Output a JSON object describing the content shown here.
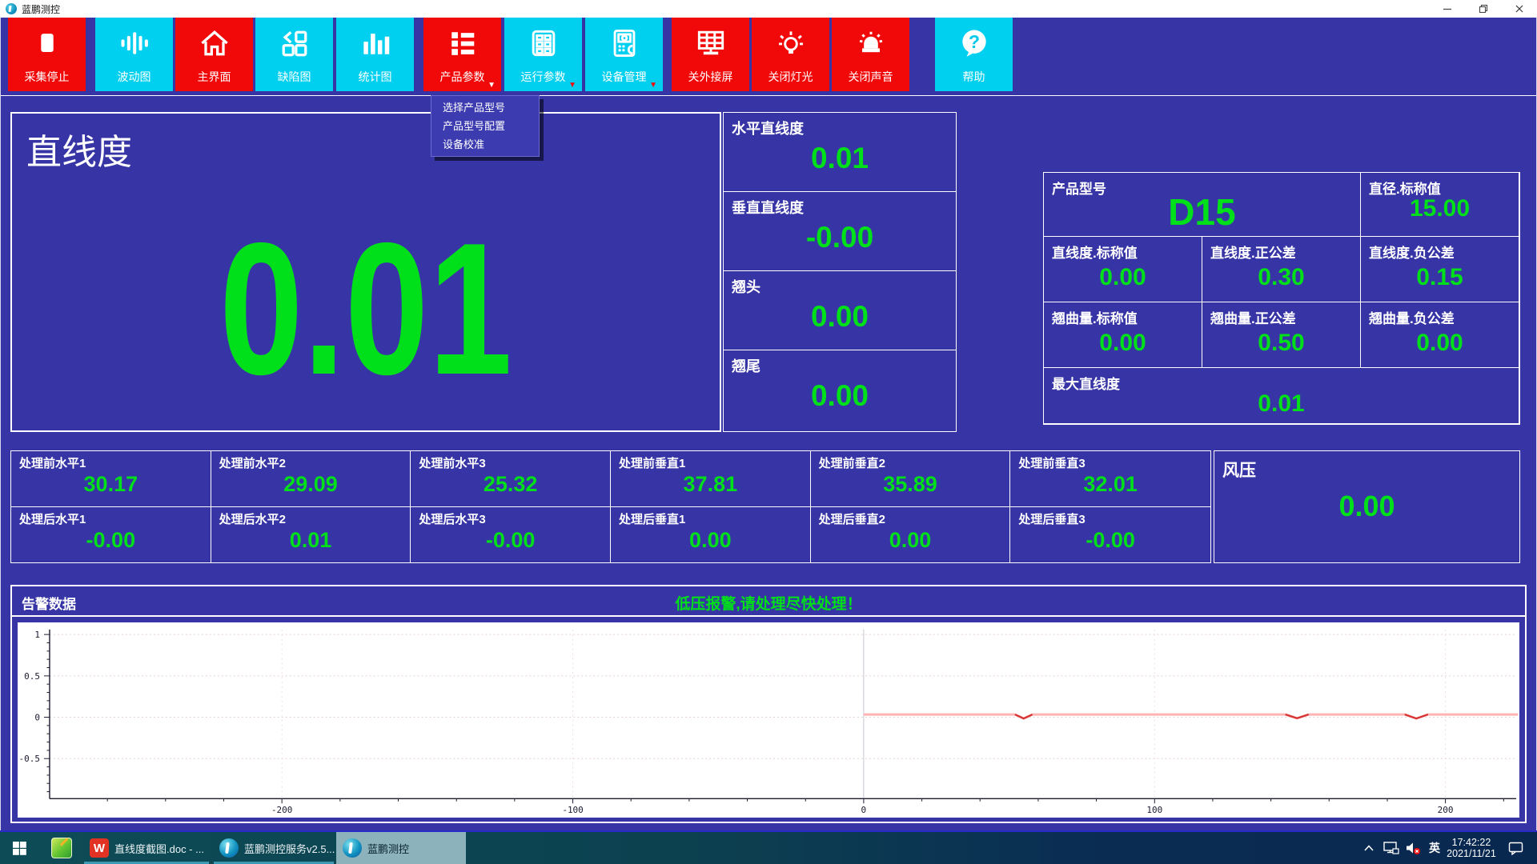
{
  "window": {
    "title": "蓝鹏测控",
    "controls": {
      "minimize": "minimize",
      "restore": "restore",
      "close": "close"
    }
  },
  "toolbar": {
    "buttons": [
      {
        "label": "采集停止",
        "color": "red",
        "icon": "stop-icon",
        "has_dropdown": false
      },
      {
        "label": "波动图",
        "color": "cyan",
        "icon": "waveform-icon",
        "has_dropdown": false
      },
      {
        "label": "主界面",
        "color": "red",
        "icon": "home-icon",
        "has_dropdown": false
      },
      {
        "label": "缺陷图",
        "color": "cyan",
        "icon": "defect-map-icon",
        "has_dropdown": false
      },
      {
        "label": "统计图",
        "color": "cyan",
        "icon": "bar-chart-icon",
        "has_dropdown": false
      },
      {
        "label": "产品参数",
        "color": "red",
        "icon": "product-list-icon",
        "has_dropdown": true
      },
      {
        "label": "运行参数",
        "color": "cyan",
        "icon": "run-params-icon",
        "has_dropdown": true
      },
      {
        "label": "设备管理",
        "color": "cyan",
        "icon": "device-icon",
        "has_dropdown": true
      },
      {
        "label": "关外接屏",
        "color": "red",
        "icon": "external-screen-icon",
        "has_dropdown": false
      },
      {
        "label": "关闭灯光",
        "color": "red",
        "icon": "light-bulb-icon",
        "has_dropdown": false
      },
      {
        "label": "关闭声音",
        "color": "red",
        "icon": "siren-icon",
        "has_dropdown": false
      },
      {
        "label": "帮助",
        "color": "cyan",
        "icon": "help-icon",
        "has_dropdown": false
      }
    ]
  },
  "dropdown_menu": {
    "items": [
      {
        "label": "选择产品型号"
      },
      {
        "label": "产品型号配置"
      },
      {
        "label": "设备校准"
      }
    ]
  },
  "main_panel": {
    "title": "直线度",
    "value": "0.01"
  },
  "side_panels": [
    {
      "label": "水平直线度",
      "value": "0.01"
    },
    {
      "label": "垂直直线度",
      "value": "-0.00"
    },
    {
      "label": "翘头",
      "value": "0.00"
    },
    {
      "label": "翘尾",
      "value": "0.00"
    }
  ],
  "product_table": {
    "model_label": "产品型号",
    "model_value": "D15",
    "diameter_label": "直径.标称值",
    "diameter_value": "15.00",
    "straightness_nominal_label": "直线度.标称值",
    "straightness_nominal_value": "0.00",
    "straightness_pos_tol_label": "直线度.正公差",
    "straightness_pos_tol_value": "0.30",
    "straightness_neg_tol_label": "直线度.负公差",
    "straightness_neg_tol_value": "0.15",
    "warp_nominal_label": "翘曲量.标称值",
    "warp_nominal_value": "0.00",
    "warp_pos_tol_label": "翘曲量.正公差",
    "warp_pos_tol_value": "0.50",
    "warp_neg_tol_label": "翘曲量.负公差",
    "warp_neg_tol_value": "0.00",
    "max_straightness_label": "最大直线度",
    "max_straightness_value": "0.01"
  },
  "process_grid": {
    "cells": [
      {
        "label": "处理前水平1",
        "value": "30.17"
      },
      {
        "label": "处理前水平2",
        "value": "29.09"
      },
      {
        "label": "处理前水平3",
        "value": "25.32"
      },
      {
        "label": "处理前垂直1",
        "value": "37.81"
      },
      {
        "label": "处理前垂直2",
        "value": "35.89"
      },
      {
        "label": "处理前垂直3",
        "value": "32.01"
      },
      {
        "label": "处理后水平1",
        "value": "-0.00"
      },
      {
        "label": "处理后水平2",
        "value": "0.01"
      },
      {
        "label": "处理后水平3",
        "value": "-0.00"
      },
      {
        "label": "处理后垂直1",
        "value": "0.00"
      },
      {
        "label": "处理后垂直2",
        "value": "0.00"
      },
      {
        "label": "处理后垂直3",
        "value": "-0.00"
      }
    ]
  },
  "wind_pressure": {
    "label": "风压",
    "value": "0.00"
  },
  "alarm": {
    "title": "告警数据",
    "message": "低压报警,请处理尽快处理！"
  },
  "chart_data": {
    "type": "line",
    "title": "",
    "xlabel": "",
    "ylabel": "",
    "xlim": [
      -280,
      225
    ],
    "ylim": [
      -1,
      1.05
    ],
    "xticks": [
      -200,
      -100,
      0,
      100,
      200
    ],
    "yticks": [
      1,
      0.5,
      0,
      -0.5
    ],
    "grid": true,
    "legend_position": "none",
    "marker_x": 0,
    "series": [
      {
        "name": "straightness-profile",
        "color": "#ffb3b3",
        "dip_color": "#d63333",
        "points": [
          [
            0,
            0.033
          ],
          [
            52,
            0.033
          ],
          [
            55,
            -0.015
          ],
          [
            58,
            0.033
          ],
          [
            100,
            0.033
          ],
          [
            145,
            0.033
          ],
          [
            149,
            -0.012
          ],
          [
            153,
            0.033
          ],
          [
            186,
            0.033
          ],
          [
            190,
            -0.015
          ],
          [
            194,
            0.033
          ],
          [
            225,
            0.033
          ]
        ]
      }
    ]
  },
  "taskbar": {
    "windows": [
      {
        "label": "直线度截图.doc - ..."
      },
      {
        "label": "蓝鹏测控服务v2.5...."
      },
      {
        "label": "蓝鹏测控"
      }
    ],
    "tray": {
      "language": "英",
      "time": "17:42:22",
      "date": "2021/11/21"
    }
  },
  "colors": {
    "background_blue": "#3734a6",
    "button_red": "#f10808",
    "button_cyan": "#00d0f0",
    "value_green": "#00e01a",
    "chart_line": "#ffb3b3",
    "chart_line_dip": "#d63333",
    "taskbar_left": "#0d4c56",
    "taskbar_right": "#092850"
  }
}
